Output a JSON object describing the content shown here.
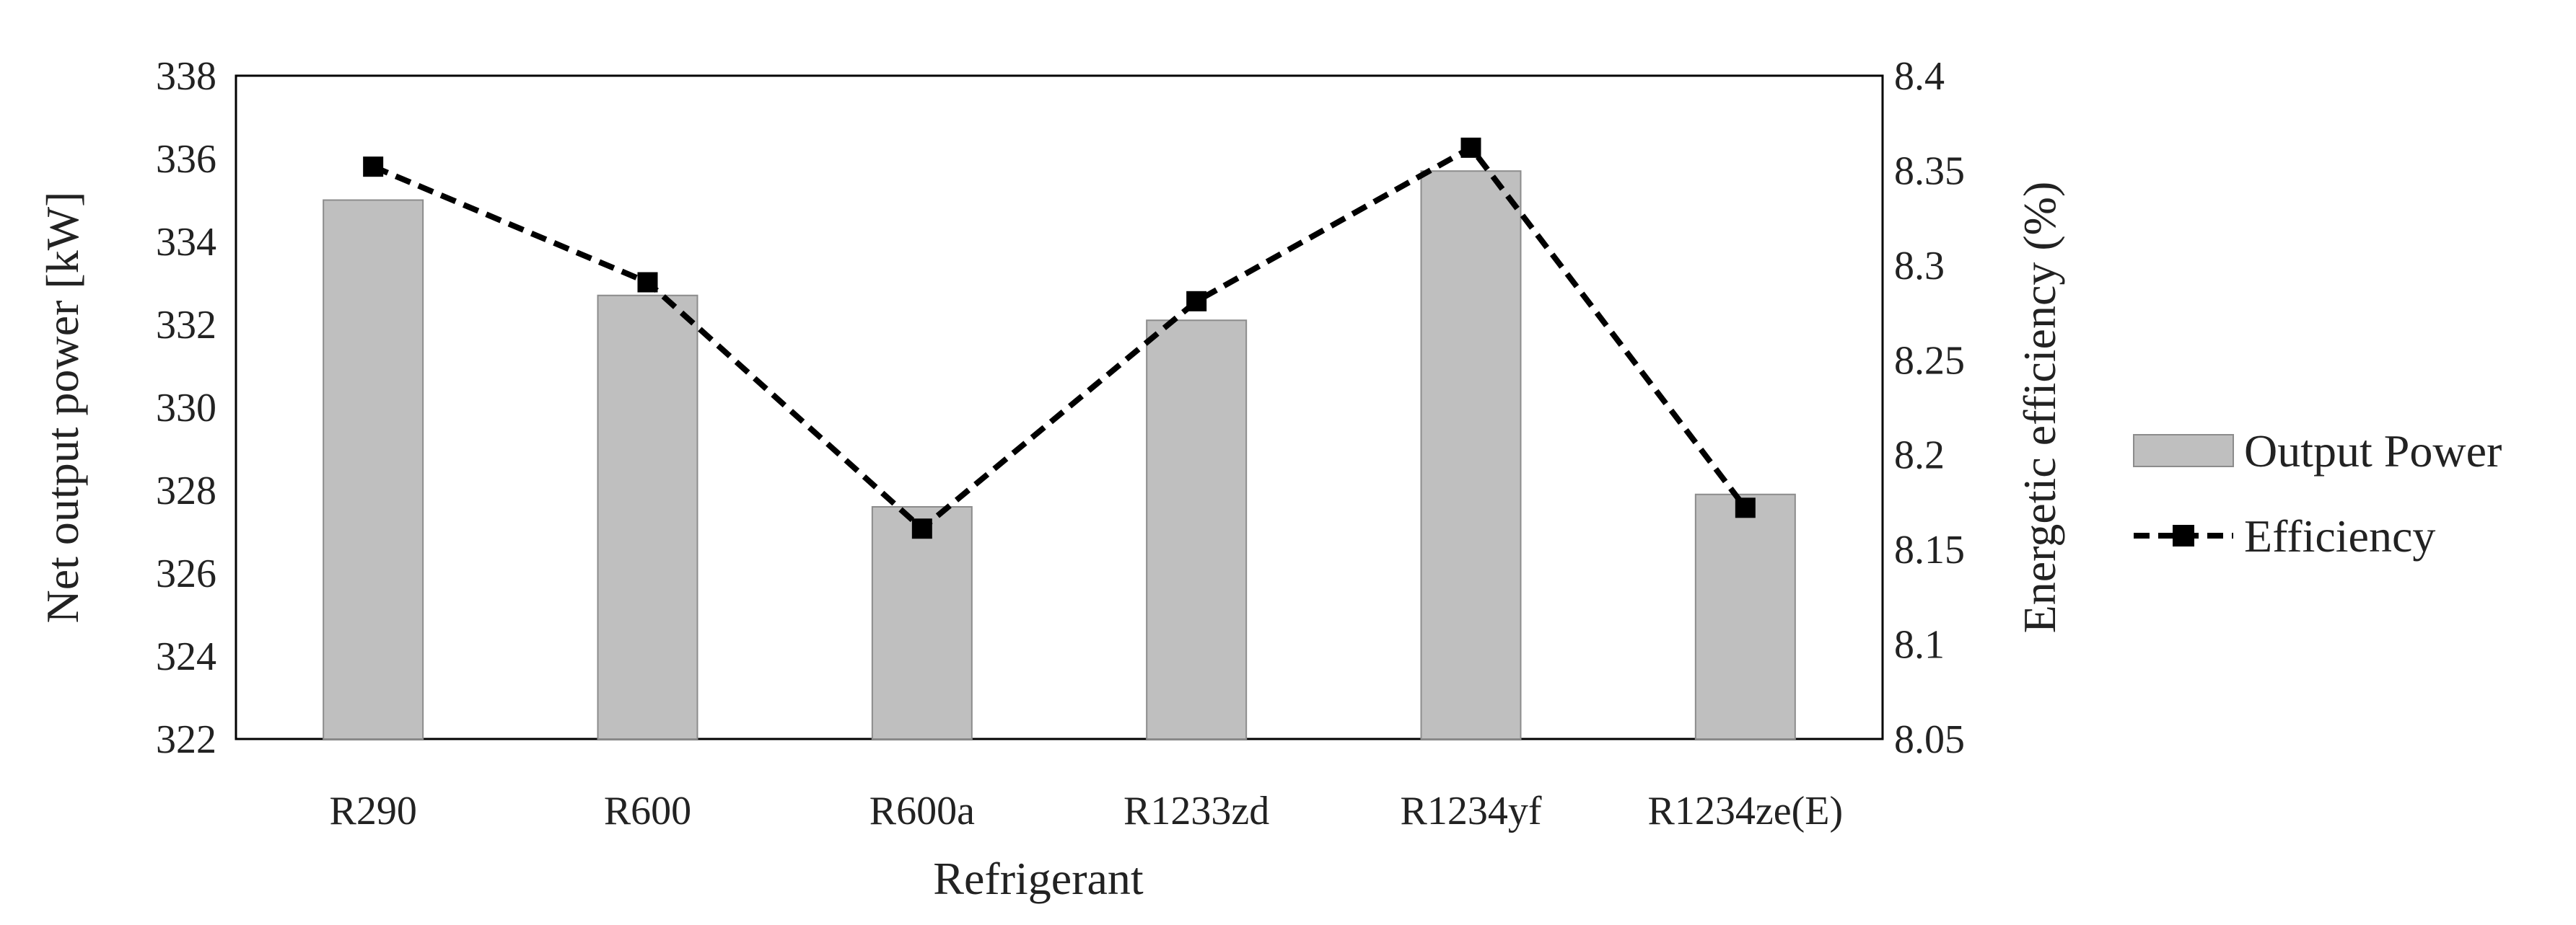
{
  "chart_data": {
    "type": "bar",
    "xlabel": "Refrigerant",
    "categories": [
      "R290",
      "R600",
      "R600a",
      "R1233zd",
      "R1234yf",
      "R1234ze(E)"
    ],
    "series": [
      {
        "name": "Output Power",
        "type": "bar",
        "axis": "left",
        "values": [
          335.0,
          332.7,
          327.6,
          332.1,
          335.7,
          327.9
        ],
        "color": "#bfbfbf"
      },
      {
        "name": "Efficiency",
        "type": "line",
        "axis": "right",
        "line_style": "dashed",
        "marker": "square",
        "values": [
          8.352,
          8.291,
          8.161,
          8.281,
          8.362,
          8.172
        ],
        "color": "#000000"
      }
    ],
    "y_left": {
      "label": "Net output power [kW]",
      "range": [
        322,
        338
      ],
      "ticks": [
        "322",
        "324",
        "326",
        "328",
        "330",
        "332",
        "334",
        "336",
        "338"
      ]
    },
    "y_right": {
      "label": "Energetic efficiency (%)",
      "range": [
        8.05,
        8.4
      ],
      "ticks": [
        "8.05",
        "8.1",
        "8.15",
        "8.2",
        "8.25",
        "8.3",
        "8.35",
        "8.4"
      ]
    },
    "grid": false,
    "legend_position": "right"
  }
}
